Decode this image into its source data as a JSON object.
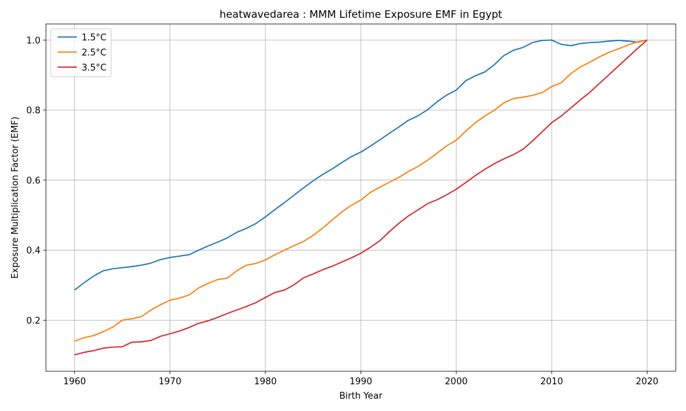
{
  "chart_data": {
    "type": "line",
    "title": "heatwavedarea : MMM Lifetime Exposure EMF in Egypt",
    "xlabel": "Birth Year",
    "ylabel": "Exposure Multiplication Factor (EMF)",
    "xlim": [
      1957,
      2023
    ],
    "ylim": [
      0.054,
      1.046
    ],
    "xticks": [
      1960,
      1970,
      1980,
      1990,
      2000,
      2010,
      2020
    ],
    "xtick_labels": [
      "1960",
      "1970",
      "1980",
      "1990",
      "2000",
      "2010",
      "2020"
    ],
    "yticks": [
      0.2,
      0.4,
      0.6,
      0.8,
      1.0
    ],
    "ytick_labels": [
      "0.2",
      "0.4",
      "0.6",
      "0.8",
      "1.0"
    ],
    "grid": true,
    "legend_position": "top-left",
    "x": [
      1960,
      1961,
      1962,
      1963,
      1964,
      1965,
      1966,
      1967,
      1968,
      1969,
      1970,
      1971,
      1972,
      1973,
      1974,
      1975,
      1976,
      1977,
      1978,
      1979,
      1980,
      1981,
      1982,
      1983,
      1984,
      1985,
      1986,
      1987,
      1988,
      1989,
      1990,
      1991,
      1992,
      1993,
      1994,
      1995,
      1996,
      1997,
      1998,
      1999,
      2000,
      2001,
      2002,
      2003,
      2004,
      2005,
      2006,
      2007,
      2008,
      2009,
      2010,
      2011,
      2012,
      2013,
      2014,
      2015,
      2016,
      2017,
      2018,
      2019,
      2020
    ],
    "series": [
      {
        "name": "1.5°C",
        "color": "#1f77b4",
        "values": [
          0.286,
          0.307,
          0.326,
          0.341,
          0.347,
          0.35,
          0.353,
          0.357,
          0.363,
          0.373,
          0.379,
          0.383,
          0.387,
          0.4,
          0.412,
          0.423,
          0.435,
          0.451,
          0.462,
          0.476,
          0.495,
          0.516,
          0.536,
          0.557,
          0.578,
          0.598,
          0.616,
          0.632,
          0.65,
          0.667,
          0.68,
          0.697,
          0.715,
          0.734,
          0.752,
          0.771,
          0.784,
          0.801,
          0.824,
          0.843,
          0.857,
          0.884,
          0.898,
          0.909,
          0.93,
          0.956,
          0.971,
          0.979,
          0.993,
          0.999,
          1.0,
          0.988,
          0.984,
          0.99,
          0.993,
          0.994,
          0.997,
          0.999,
          0.997,
          0.994,
          1.0
        ]
      },
      {
        "name": "2.5°C",
        "color": "#ff7f0e",
        "values": [
          0.14,
          0.15,
          0.156,
          0.167,
          0.18,
          0.2,
          0.204,
          0.21,
          0.229,
          0.244,
          0.257,
          0.263,
          0.272,
          0.292,
          0.305,
          0.316,
          0.32,
          0.341,
          0.357,
          0.362,
          0.372,
          0.387,
          0.4,
          0.413,
          0.425,
          0.442,
          0.463,
          0.486,
          0.509,
          0.528,
          0.543,
          0.565,
          0.58,
          0.594,
          0.608,
          0.625,
          0.639,
          0.657,
          0.677,
          0.698,
          0.714,
          0.74,
          0.764,
          0.783,
          0.8,
          0.821,
          0.833,
          0.837,
          0.842,
          0.85,
          0.867,
          0.878,
          0.904,
          0.923,
          0.937,
          0.952,
          0.965,
          0.975,
          0.986,
          0.995,
          1.0
        ]
      },
      {
        "name": "3.5°C",
        "color": "#d62728",
        "values": [
          0.101,
          0.108,
          0.113,
          0.12,
          0.123,
          0.124,
          0.137,
          0.138,
          0.142,
          0.154,
          0.161,
          0.169,
          0.179,
          0.191,
          0.198,
          0.208,
          0.219,
          0.229,
          0.239,
          0.25,
          0.265,
          0.279,
          0.286,
          0.301,
          0.321,
          0.332,
          0.344,
          0.354,
          0.366,
          0.378,
          0.391,
          0.408,
          0.427,
          0.453,
          0.477,
          0.498,
          0.515,
          0.533,
          0.544,
          0.558,
          0.574,
          0.593,
          0.613,
          0.631,
          0.647,
          0.661,
          0.673,
          0.688,
          0.712,
          0.738,
          0.764,
          0.783,
          0.806,
          0.829,
          0.851,
          0.876,
          0.901,
          0.926,
          0.951,
          0.976,
          1.0
        ]
      }
    ]
  }
}
